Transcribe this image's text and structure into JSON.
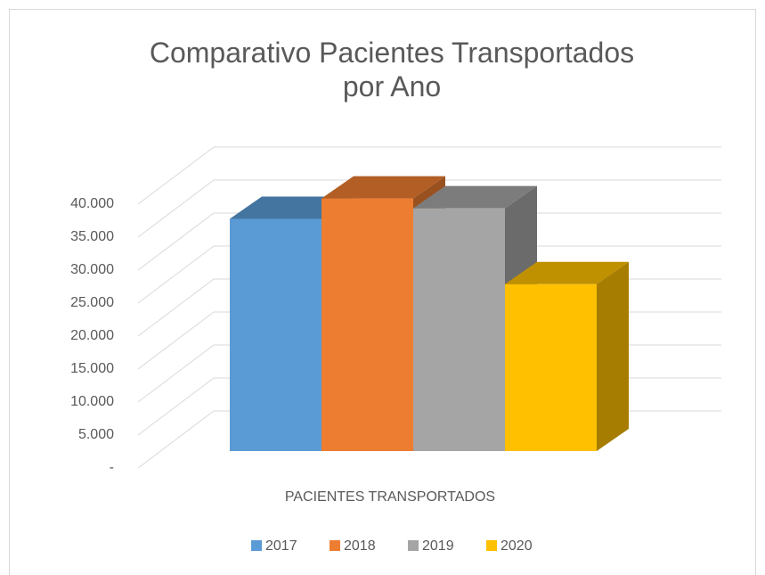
{
  "chart_data": {
    "type": "bar3d",
    "title": "Comparativo Pacientes Transportados por Ano",
    "categories": [
      "PACIENTES TRANSPORTADOS"
    ],
    "series": [
      {
        "name": "2017",
        "color": "#5b9bd5",
        "values": [
          35200
        ]
      },
      {
        "name": "2018",
        "color": "#ed7d31",
        "values": [
          38300
        ]
      },
      {
        "name": "2019",
        "color": "#a5a5a5",
        "values": [
          36800
        ]
      },
      {
        "name": "2020",
        "color": "#ffc000",
        "values": [
          25300
        ]
      }
    ],
    "ylim": [
      0,
      40000
    ],
    "yticks": [
      {
        "value": 0,
        "label": "-"
      },
      {
        "value": 5000,
        "label": "5.000"
      },
      {
        "value": 10000,
        "label": "10.000"
      },
      {
        "value": 15000,
        "label": "15.000"
      },
      {
        "value": 20000,
        "label": "20.000"
      },
      {
        "value": 25000,
        "label": "25.000"
      },
      {
        "value": 30000,
        "label": "30.000"
      },
      {
        "value": 35000,
        "label": "35.000"
      },
      {
        "value": 40000,
        "label": "40.000"
      }
    ],
    "grid": true,
    "legend": "bottom"
  }
}
